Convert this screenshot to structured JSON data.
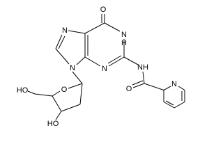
{
  "atoms": [
    {
      "label": "O"
    },
    {
      "label": "N"
    },
    {
      "label": "H"
    },
    {
      "label": "N"
    },
    {
      "label": "N"
    },
    {
      "label": "N"
    },
    {
      "label": "NH"
    },
    {
      "label": "O"
    },
    {
      "label": "N"
    },
    {
      "label": "O"
    },
    {
      "label": "HO"
    },
    {
      "label": "HO"
    }
  ]
}
